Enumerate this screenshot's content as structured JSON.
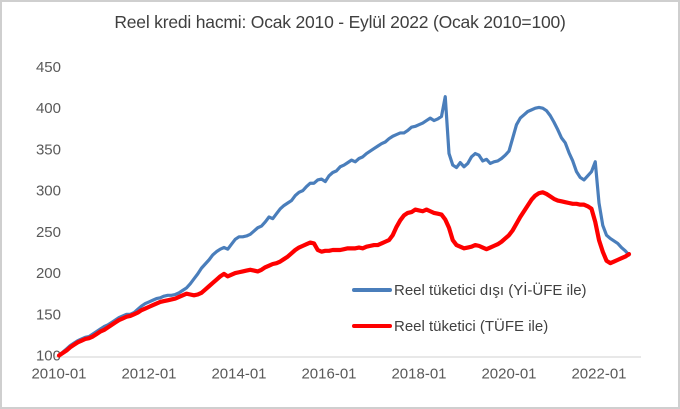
{
  "chart_data": {
    "type": "line",
    "title": "Reel kredi hacmi: Ocak 2010 - Eylül 2022 (Ocak 2010=100)",
    "x_axis": {
      "tick_labels": [
        "2010-01",
        "2012-01",
        "2014-01",
        "2016-01",
        "2018-01",
        "2020-01",
        "2022-01"
      ],
      "start": "2010-01",
      "end": "2022-09",
      "frequency": "monthly"
    },
    "y_axis": {
      "tick_labels": [
        "450",
        "400",
        "350",
        "300",
        "250",
        "200",
        "150",
        "100"
      ],
      "min": 100,
      "max": 450
    },
    "grid": "off",
    "legend": {
      "position": "inside lower right"
    },
    "series": [
      {
        "name": "Reel tüketici dışı (Yİ-ÜFE ile)",
        "color": "#4a7ebb",
        "stroke_width": 3.2,
        "values": [
          100,
          104,
          108,
          112,
          115,
          118,
          120,
          122,
          123,
          126,
          129,
          132,
          135,
          137,
          140,
          143,
          146,
          148,
          150,
          150,
          152,
          156,
          160,
          163,
          165,
          167,
          169,
          170,
          172,
          173,
          173,
          174,
          176,
          179,
          182,
          187,
          193,
          199,
          206,
          211,
          216,
          222,
          226,
          229,
          231,
          229,
          235,
          241,
          244,
          244,
          245,
          247,
          251,
          255,
          257,
          262,
          268,
          266,
          272,
          278,
          282,
          285,
          288,
          294,
          298,
          300,
          305,
          309,
          309,
          313,
          314,
          311,
          318,
          322,
          324,
          329,
          331,
          334,
          337,
          335,
          339,
          341,
          345,
          348,
          351,
          354,
          357,
          359,
          363,
          366,
          368,
          370,
          370,
          373,
          377,
          378,
          380,
          382,
          385,
          388,
          385,
          387,
          390,
          414,
          345,
          331,
          328,
          334,
          329,
          333,
          341,
          345,
          343,
          336,
          338,
          333,
          335,
          336,
          339,
          343,
          348,
          364,
          380,
          388,
          392,
          396,
          398,
          400,
          401,
          400,
          397,
          391,
          383,
          374,
          364,
          358,
          346,
          336,
          323,
          316,
          313,
          318,
          323,
          335,
          285,
          258,
          246,
          242,
          239,
          236,
          231,
          227,
          222
        ]
      },
      {
        "name": "Reel tüketici (TÜFE ile)",
        "color": "#fe0000",
        "stroke_width": 4.2,
        "values": [
          100,
          103,
          106,
          110,
          113,
          116,
          118,
          120,
          121,
          123,
          126,
          129,
          131,
          134,
          137,
          140,
          143,
          145,
          147,
          148,
          150,
          152,
          155,
          157,
          159,
          161,
          163,
          165,
          166,
          167,
          168,
          169,
          171,
          173,
          175,
          174,
          173,
          174,
          176,
          180,
          184,
          188,
          192,
          196,
          199,
          196,
          198,
          200,
          201,
          202,
          203,
          204,
          203,
          202,
          204,
          207,
          209,
          211,
          212,
          214,
          217,
          220,
          224,
          228,
          231,
          233,
          235,
          237,
          236,
          228,
          226,
          227,
          227,
          228,
          228,
          228,
          229,
          230,
          230,
          230,
          231,
          230,
          232,
          233,
          234,
          234,
          236,
          238,
          240,
          246,
          256,
          264,
          270,
          273,
          274,
          277,
          276,
          275,
          277,
          275,
          273,
          272,
          271,
          265,
          255,
          240,
          234,
          232,
          230,
          231,
          232,
          234,
          233,
          231,
          229,
          231,
          233,
          235,
          238,
          242,
          246,
          252,
          260,
          268,
          275,
          282,
          289,
          294,
          297,
          298,
          296,
          293,
          290,
          288,
          287,
          286,
          285,
          284,
          284,
          283,
          283,
          281,
          278,
          262,
          240,
          226,
          215,
          212,
          214,
          216,
          218,
          220,
          223
        ]
      }
    ],
    "colors": {
      "title_text": "#3f3f3f",
      "axis_text": "#595959",
      "axis_line": "#d9d9d9"
    }
  }
}
